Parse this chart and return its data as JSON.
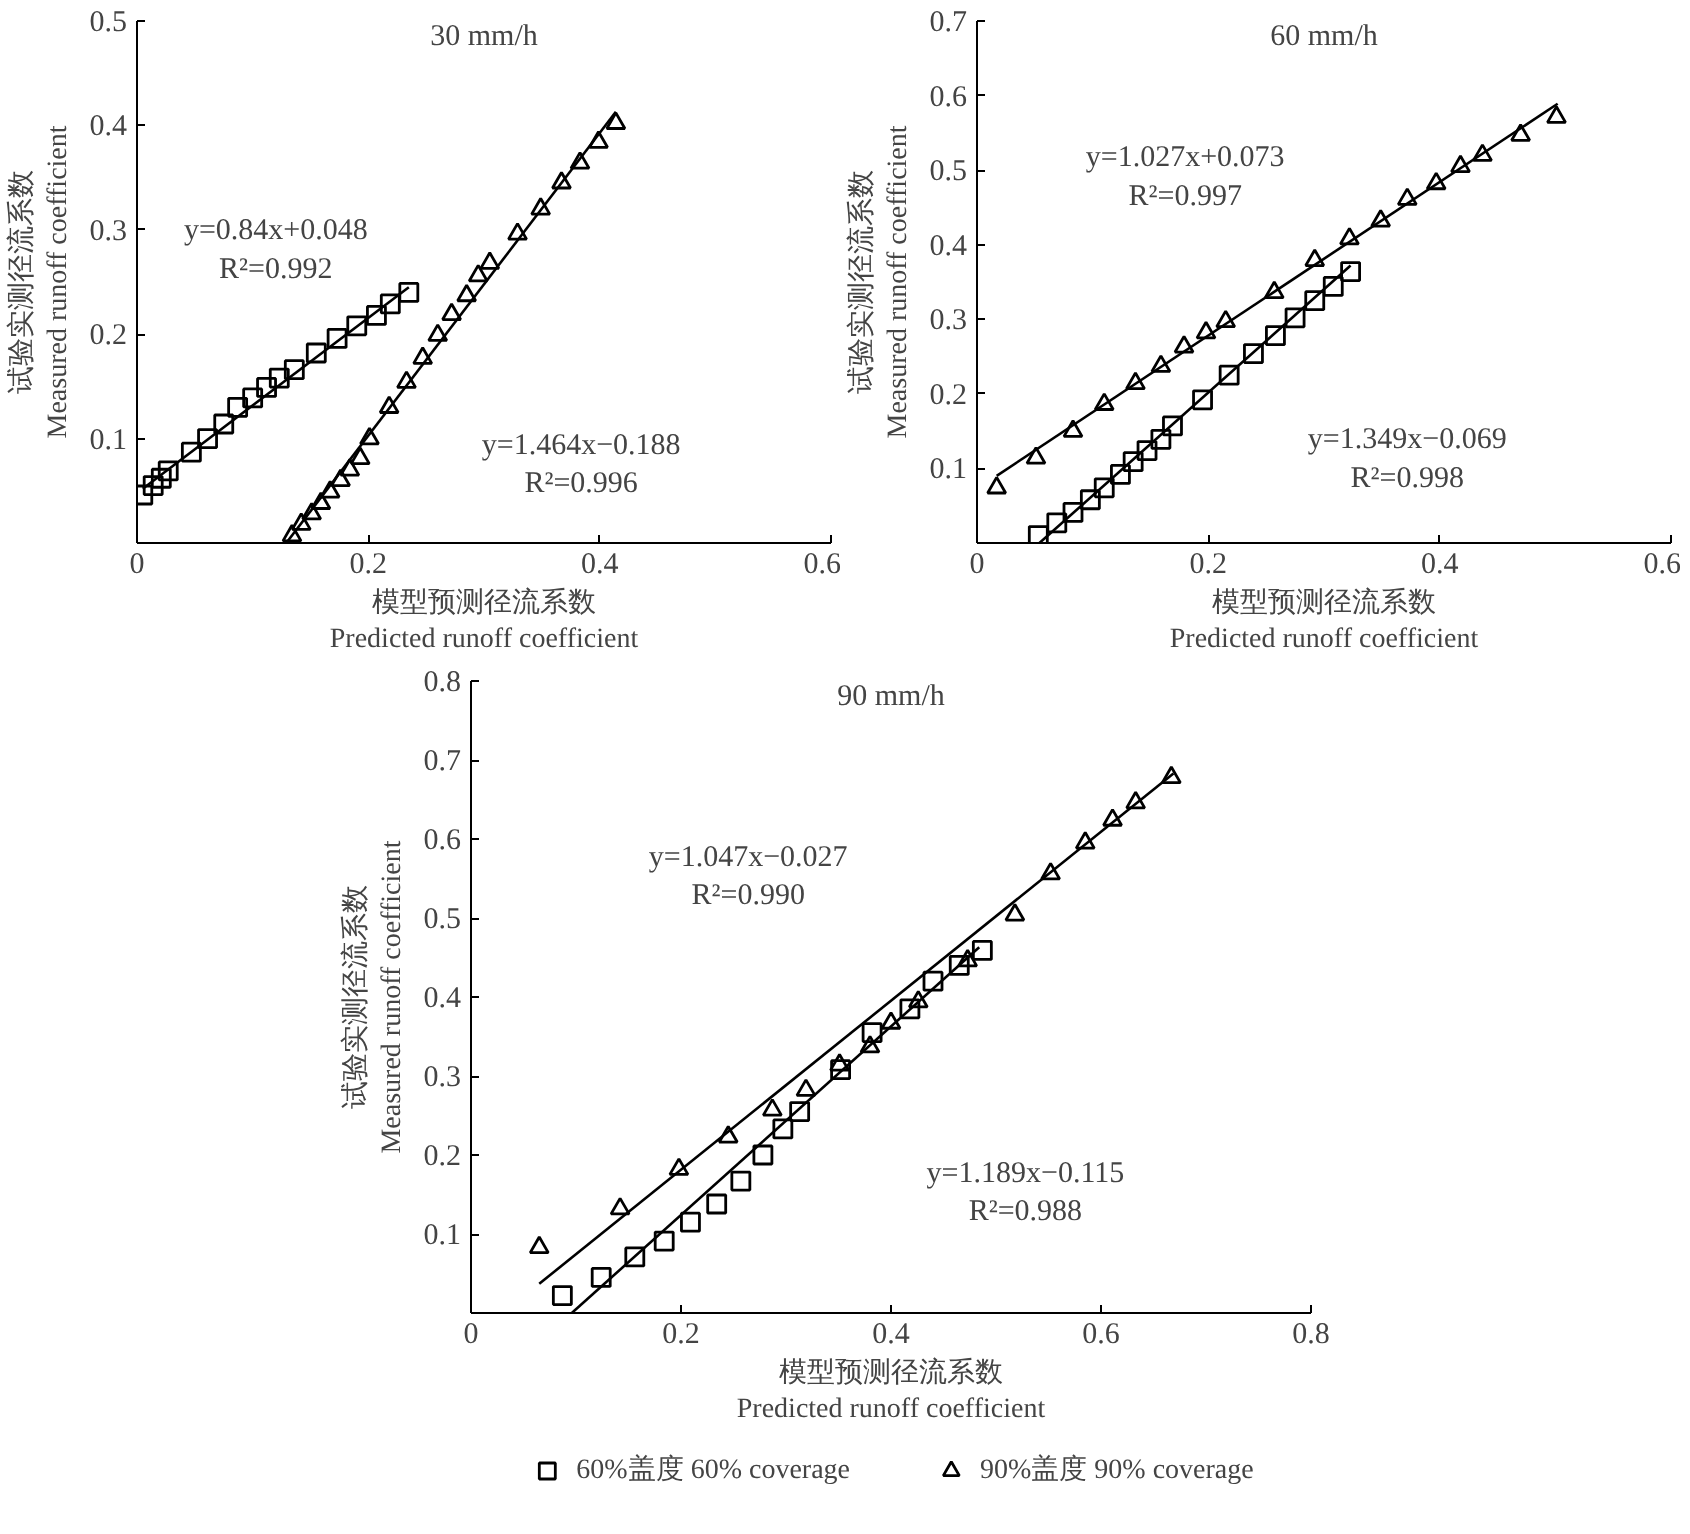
{
  "chart_data": [
    {
      "type": "scatter",
      "title": "30 mm/h",
      "xlabel": "模型预测径流系数\nPredicted runoff coefficient",
      "ylabel": "试验实测径流系数\nMeasured runoff coefficient",
      "xlim": [
        0,
        0.6
      ],
      "ylim": [
        0,
        0.5
      ],
      "xticks": [
        0,
        0.2,
        0.4,
        0.6
      ],
      "yticks": [
        0.1,
        0.2,
        0.3,
        0.4,
        0.5
      ],
      "grid": false,
      "legend": false,
      "series": [
        {
          "marker": "square",
          "color": "#000000",
          "x": [
            0.005,
            0.014,
            0.021,
            0.027,
            0.047,
            0.061,
            0.075,
            0.087,
            0.1,
            0.112,
            0.123,
            0.136,
            0.155,
            0.173,
            0.19,
            0.207,
            0.219,
            0.235
          ],
          "values": [
            0.046,
            0.055,
            0.062,
            0.069,
            0.087,
            0.1,
            0.114,
            0.13,
            0.139,
            0.149,
            0.158,
            0.166,
            0.182,
            0.196,
            0.208,
            0.218,
            0.229,
            0.24
          ]
        },
        {
          "marker": "triangle",
          "color": "#000000",
          "x": [
            0.134,
            0.142,
            0.151,
            0.159,
            0.167,
            0.176,
            0.184,
            0.193,
            0.201,
            0.218,
            0.233,
            0.247,
            0.26,
            0.272,
            0.285,
            0.295,
            0.305,
            0.329,
            0.349,
            0.367,
            0.383,
            0.399,
            0.414
          ],
          "values": [
            0.007,
            0.018,
            0.028,
            0.038,
            0.049,
            0.06,
            0.07,
            0.081,
            0.1,
            0.13,
            0.154,
            0.177,
            0.199,
            0.219,
            0.237,
            0.256,
            0.268,
            0.296,
            0.32,
            0.345,
            0.364,
            0.384,
            0.402
          ]
        },
        {
          "type": "line",
          "color": "#000000",
          "x": [
            0.005,
            0.235
          ],
          "values": [
            0.052,
            0.245
          ]
        },
        {
          "type": "line",
          "color": "#000000",
          "x": [
            0.129,
            0.414
          ],
          "values": [
            0.0,
            0.413
          ]
        }
      ],
      "annotations": [
        "y=0.84x+0.048\nR²=0.992",
        "y=1.464x−0.188\nR²=0.996"
      ]
    },
    {
      "type": "scatter",
      "title": "60 mm/h",
      "xlabel": "模型预测径流系数\nPredicted runoff coefficient",
      "ylabel": "试验实测径流系数\nMeasured runoff coefficient",
      "xlim": [
        0,
        0.6
      ],
      "ylim": [
        0,
        0.7
      ],
      "xticks": [
        0,
        0.2,
        0.4,
        0.6
      ],
      "yticks": [
        0.1,
        0.2,
        0.3,
        0.4,
        0.5,
        0.6,
        0.7
      ],
      "grid": false,
      "legend": false,
      "series": [
        {
          "marker": "square",
          "color": "#000000",
          "x": [
            0.053,
            0.069,
            0.083,
            0.098,
            0.11,
            0.124,
            0.135,
            0.147,
            0.159,
            0.169,
            0.195,
            0.218,
            0.239,
            0.258,
            0.275,
            0.292,
            0.308,
            0.323
          ],
          "values": [
            0.01,
            0.027,
            0.041,
            0.058,
            0.074,
            0.092,
            0.109,
            0.124,
            0.139,
            0.157,
            0.192,
            0.225,
            0.254,
            0.278,
            0.302,
            0.325,
            0.344,
            0.364
          ]
        },
        {
          "marker": "triangle",
          "color": "#000000",
          "x": [
            0.017,
            0.051,
            0.083,
            0.11,
            0.137,
            0.159,
            0.179,
            0.198,
            0.215,
            0.257,
            0.292,
            0.322,
            0.349,
            0.372,
            0.397,
            0.418,
            0.437,
            0.47,
            0.501
          ],
          "values": [
            0.074,
            0.114,
            0.15,
            0.186,
            0.214,
            0.237,
            0.263,
            0.282,
            0.297,
            0.336,
            0.379,
            0.408,
            0.432,
            0.461,
            0.482,
            0.505,
            0.52,
            0.547,
            0.571
          ]
        },
        {
          "type": "line",
          "color": "#000000",
          "x": [
            0.054,
            0.323
          ],
          "values": [
            0.0,
            0.372
          ]
        },
        {
          "type": "line",
          "color": "#000000",
          "x": [
            0.017,
            0.502
          ],
          "values": [
            0.09,
            0.589
          ]
        }
      ],
      "annotations": [
        "y=1.027x+0.073\nR²=0.997",
        "y=1.349x−0.069\nR²=0.998"
      ]
    },
    {
      "type": "scatter",
      "title": "90 mm/h",
      "xlabel": "模型预测径流系数\nPredicted runoff coefficient",
      "ylabel": "试验实测径流系数\nMeasured runoff coefficient",
      "xlim": [
        0,
        0.8
      ],
      "ylim": [
        0,
        0.8
      ],
      "xticks": [
        0,
        0.2,
        0.4,
        0.6,
        0.8
      ],
      "yticks": [
        0.1,
        0.2,
        0.3,
        0.4,
        0.5,
        0.6,
        0.7,
        0.8
      ],
      "grid": false,
      "legend": "bottom",
      "series": [
        {
          "name": "60%盖度 60% coverage",
          "marker": "square",
          "color": "#000000",
          "x": [
            0.087,
            0.124,
            0.156,
            0.184,
            0.209,
            0.234,
            0.257,
            0.278,
            0.297,
            0.313,
            0.352,
            0.382,
            0.418,
            0.44,
            0.465,
            0.487
          ],
          "values": [
            0.022,
            0.045,
            0.071,
            0.091,
            0.115,
            0.138,
            0.167,
            0.2,
            0.233,
            0.255,
            0.308,
            0.355,
            0.385,
            0.42,
            0.44,
            0.459
          ]
        },
        {
          "name": "90%盖度 90% coverage",
          "marker": "triangle",
          "color": "#000000",
          "x": [
            0.065,
            0.142,
            0.198,
            0.245,
            0.287,
            0.319,
            0.351,
            0.38,
            0.4,
            0.426,
            0.473,
            0.518,
            0.552,
            0.585,
            0.611,
            0.633,
            0.667
          ],
          "values": [
            0.083,
            0.132,
            0.182,
            0.223,
            0.257,
            0.282,
            0.314,
            0.337,
            0.367,
            0.394,
            0.446,
            0.504,
            0.556,
            0.595,
            0.624,
            0.646,
            0.678
          ]
        },
        {
          "type": "line",
          "color": "#000000",
          "x": [
            0.096,
            0.484
          ],
          "values": [
            0.0,
            0.463
          ]
        },
        {
          "type": "line",
          "color": "#000000",
          "x": [
            0.065,
            0.669
          ],
          "values": [
            0.037,
            0.683
          ]
        }
      ],
      "annotations": [
        "y=1.047x−0.027\nR²=0.990",
        "y=1.189x−0.115\nR²=0.988"
      ]
    }
  ]
}
